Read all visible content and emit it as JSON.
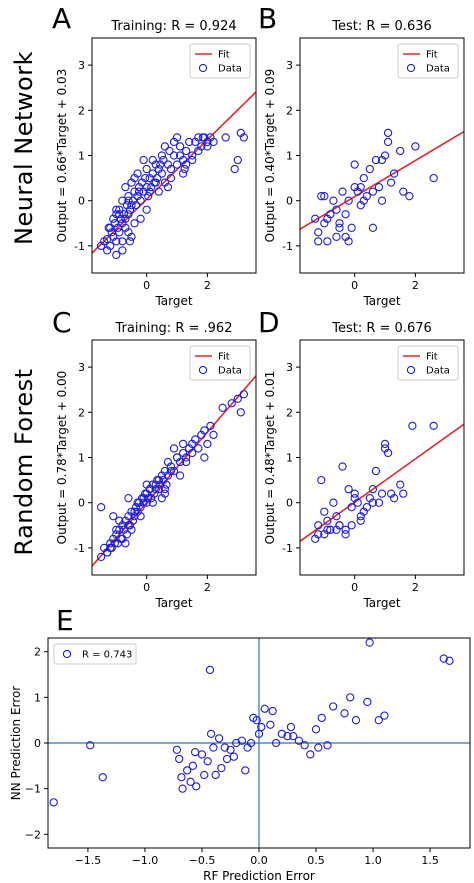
{
  "figure": {
    "row_labels": [
      "Neural Network",
      "Random Forest"
    ]
  },
  "chart_data": [
    {
      "id": "A",
      "type": "scatter",
      "panel_label": "A",
      "title": "Training:  R = 0.924",
      "xlabel": "Target",
      "ylabel": "Output = 0.66*Target + 0.03",
      "xlim": [
        -1.8,
        3.6
      ],
      "ylim": [
        -1.6,
        3.6
      ],
      "xticks": [
        0,
        2
      ],
      "yticks": [
        -1,
        0,
        1,
        2,
        3
      ],
      "legend": {
        "position": "top-right",
        "entries": [
          "Fit",
          "Data"
        ]
      },
      "fit": {
        "slope": 0.66,
        "intercept": 0.03,
        "name": "Fit"
      },
      "series": [
        {
          "name": "Data",
          "x": [
            -1.5,
            -1.4,
            -1.3,
            -1.25,
            -1.2,
            -1.15,
            -1.1,
            -1.05,
            -1.0,
            -1.0,
            -0.95,
            -0.9,
            -0.9,
            -0.85,
            -0.8,
            -0.8,
            -0.75,
            -0.7,
            -0.7,
            -0.65,
            -0.6,
            -0.6,
            -0.55,
            -0.5,
            -0.5,
            -0.45,
            -0.4,
            -0.35,
            -0.3,
            -0.25,
            -0.2,
            -0.15,
            -0.1,
            -0.05,
            0.0,
            0.05,
            0.1,
            0.15,
            0.2,
            0.25,
            0.3,
            0.35,
            0.4,
            0.5,
            0.55,
            0.6,
            0.7,
            0.75,
            0.8,
            0.9,
            1.0,
            1.1,
            1.2,
            1.3,
            1.4,
            1.5,
            1.6,
            1.7,
            1.8,
            1.9,
            2.0,
            2.1,
            -1.2,
            -1.0,
            -0.8,
            -0.6,
            -0.5,
            -0.3,
            -0.2,
            0.0,
            0.2,
            0.4,
            0.6,
            0.8,
            1.0,
            1.2,
            -0.9,
            -0.7,
            -0.4,
            -0.1,
            0.3,
            0.9,
            1.5,
            2.0,
            2.6,
            2.9,
            3.0,
            3.1,
            3.2,
            -1.3,
            -1.1,
            -0.6,
            0.1,
            0.5,
            1.3,
            1.7,
            -0.8,
            -0.4,
            0.0,
            0.7,
            1.1,
            2.2,
            -1.0,
            -0.55,
            -0.25,
            0.45,
            1.25,
            1.85
          ],
          "y": [
            -1.0,
            -0.9,
            -0.85,
            -0.6,
            -1.0,
            -0.7,
            -0.8,
            -0.5,
            -0.9,
            -0.3,
            -0.6,
            -0.7,
            -0.2,
            -0.4,
            -0.5,
            -0.9,
            -0.3,
            -0.4,
            -0.6,
            -0.1,
            -0.3,
            0.0,
            -0.2,
            -0.1,
            0.4,
            0.0,
            0.2,
            -0.1,
            0.1,
            0.3,
            0.0,
            0.4,
            0.2,
            0.5,
            0.3,
            0.1,
            0.5,
            0.3,
            0.6,
            0.4,
            0.8,
            0.5,
            0.7,
            0.6,
            0.9,
            0.4,
            0.8,
            1.1,
            0.7,
            1.0,
            0.8,
            1.2,
            0.9,
            1.1,
            1.3,
            0.9,
            1.3,
            1.1,
            1.2,
            1.4,
            1.3,
            1.4,
            -0.6,
            -0.2,
            -1.1,
            0.1,
            -0.8,
            0.6,
            -0.4,
            0.7,
            0.9,
            0.2,
            1.2,
            0.5,
            1.4,
            0.6,
            -0.3,
            0.3,
            -0.5,
            0.9,
            0.4,
            1.3,
            1.0,
            1.2,
            1.4,
            0.7,
            0.9,
            1.5,
            1.4,
            -1.1,
            -0.4,
            -0.7,
            0.2,
            1.0,
            0.8,
            1.4,
            0.0,
            0.5,
            -0.2,
            0.3,
            1.0,
            1.3,
            -1.2,
            -0.9,
            0.2,
            0.8,
            0.7,
            1.4
          ]
        }
      ]
    },
    {
      "id": "B",
      "type": "scatter",
      "panel_label": "B",
      "title": "Test:  R = 0.636",
      "xlabel": "Target",
      "ylabel": "Output = 0.40*Target + 0.09",
      "xlim": [
        -1.8,
        3.6
      ],
      "ylim": [
        -1.6,
        3.6
      ],
      "xticks": [
        0,
        2
      ],
      "yticks": [
        -1,
        0,
        1,
        2,
        3
      ],
      "legend": {
        "position": "top-right",
        "entries": [
          "Fit",
          "Data"
        ]
      },
      "fit": {
        "slope": 0.4,
        "intercept": 0.09,
        "name": "Fit"
      },
      "series": [
        {
          "name": "Data",
          "x": [
            -1.3,
            -1.2,
            -1.1,
            -1.0,
            -0.9,
            -0.8,
            -0.7,
            -0.6,
            -0.5,
            -0.4,
            -0.3,
            -0.2,
            -0.1,
            0.0,
            0.1,
            0.2,
            0.3,
            0.4,
            0.5,
            0.6,
            0.7,
            0.8,
            0.9,
            1.0,
            1.1,
            1.2,
            1.3,
            1.5,
            1.6,
            1.8,
            2.0,
            2.6,
            -1.2,
            -0.9,
            -0.5,
            -0.3,
            0.0,
            0.2,
            0.6,
            0.9,
            1.1,
            -1.0,
            -0.6,
            -0.2,
            0.3
          ],
          "y": [
            -0.4,
            -0.7,
            0.1,
            -0.5,
            -0.9,
            -0.3,
            0.0,
            -0.8,
            -0.5,
            0.2,
            -0.3,
            0.0,
            -0.6,
            0.3,
            0.2,
            -0.1,
            0.5,
            0.1,
            0.7,
            0.2,
            0.9,
            0.3,
            0.0,
            1.0,
            1.5,
            0.4,
            0.6,
            1.1,
            0.2,
            0.1,
            1.2,
            0.5,
            -0.9,
            -0.4,
            -0.6,
            -0.8,
            0.8,
            0.3,
            -0.6,
            0.9,
            1.3,
            0.1,
            -0.2,
            -0.9,
            0.0
          ]
        }
      ]
    },
    {
      "id": "C",
      "type": "scatter",
      "panel_label": "C",
      "title": "Training:  R = .962",
      "xlabel": "Target",
      "ylabel": "Output = 0.78*Target + 0.00",
      "xlim": [
        -1.8,
        3.6
      ],
      "ylim": [
        -1.6,
        3.6
      ],
      "xticks": [
        0,
        2
      ],
      "yticks": [
        -1,
        0,
        1,
        2,
        3
      ],
      "legend": {
        "position": "top-right",
        "entries": [
          "Fit",
          "Data"
        ]
      },
      "fit": {
        "slope": 0.78,
        "intercept": 0.0,
        "name": "Fit"
      },
      "series": [
        {
          "name": "Data",
          "x": [
            -1.5,
            -1.4,
            -1.3,
            -1.2,
            -1.15,
            -1.1,
            -1.05,
            -1.0,
            -0.95,
            -0.9,
            -0.85,
            -0.8,
            -0.75,
            -0.7,
            -0.65,
            -0.6,
            -0.55,
            -0.5,
            -0.45,
            -0.4,
            -0.35,
            -0.3,
            -0.25,
            -0.2,
            -0.15,
            -0.1,
            -0.05,
            0.0,
            0.05,
            0.1,
            0.15,
            0.2,
            0.25,
            0.3,
            0.35,
            0.4,
            0.45,
            0.5,
            0.55,
            0.6,
            0.65,
            0.7,
            0.8,
            0.9,
            1.0,
            1.1,
            1.2,
            1.3,
            1.4,
            1.5,
            1.6,
            1.7,
            1.8,
            1.9,
            2.0,
            2.1,
            2.2,
            2.5,
            2.8,
            3.0,
            3.1,
            3.2,
            -1.2,
            -1.0,
            -0.8,
            -0.6,
            -0.4,
            -0.2,
            0.0,
            0.2,
            0.4,
            0.6,
            0.8,
            1.0,
            1.2,
            -1.3,
            -0.9,
            -0.5,
            -0.1,
            0.3,
            0.7,
            1.1,
            1.5,
            1.9,
            -0.7,
            -0.3,
            0.1,
            0.5,
            0.9,
            1.3,
            -1.1,
            -0.6,
            0.0,
            0.6,
            -1.5
          ],
          "y": [
            -1.2,
            -1.0,
            -1.1,
            -0.9,
            -1.0,
            -0.8,
            -0.9,
            -0.7,
            -0.9,
            -0.6,
            -0.8,
            -0.5,
            -0.6,
            -0.4,
            -0.7,
            -0.3,
            -0.5,
            -0.2,
            -0.4,
            -0.3,
            -0.1,
            -0.2,
            0.0,
            -0.1,
            0.1,
            0.0,
            0.2,
            0.0,
            0.1,
            0.3,
            0.1,
            0.4,
            0.2,
            0.3,
            0.5,
            0.3,
            0.4,
            0.6,
            0.5,
            0.7,
            0.4,
            0.6,
            0.8,
            0.7,
            1.0,
            0.9,
            1.1,
            1.0,
            1.2,
            1.3,
            1.4,
            1.2,
            1.5,
            1.6,
            1.3,
            1.7,
            1.5,
            2.1,
            2.2,
            2.3,
            2.0,
            2.4,
            -1.0,
            -0.6,
            -0.8,
            -0.5,
            -0.2,
            -0.3,
            0.2,
            0.0,
            0.5,
            0.2,
            0.7,
            1.0,
            1.3,
            -1.1,
            -0.4,
            -0.6,
            0.1,
            0.4,
            0.9,
            0.6,
            1.1,
            1.0,
            -0.9,
            0.0,
            0.3,
            0.1,
            1.2,
            0.9,
            -0.3,
            0.1,
            0.4,
            0.3,
            -0.1
          ]
        }
      ]
    },
    {
      "id": "D",
      "type": "scatter",
      "panel_label": "D",
      "title": "Test:  R = 0.676",
      "xlabel": "Target",
      "ylabel": "Output = 0.48*Target + 0.01",
      "xlim": [
        -1.8,
        3.6
      ],
      "ylim": [
        -1.6,
        3.6
      ],
      "xticks": [
        0,
        2
      ],
      "yticks": [
        -1,
        0,
        1,
        2,
        3
      ],
      "legend": {
        "position": "top-right",
        "entries": [
          "Fit",
          "Data"
        ]
      },
      "fit": {
        "slope": 0.48,
        "intercept": 0.01,
        "name": "Fit"
      },
      "series": [
        {
          "name": "Data",
          "x": [
            -1.3,
            -1.2,
            -1.1,
            -1.0,
            -0.9,
            -0.8,
            -0.7,
            -0.6,
            -0.5,
            -0.4,
            -0.3,
            -0.2,
            -0.1,
            0.0,
            0.1,
            0.2,
            0.3,
            0.5,
            0.6,
            0.7,
            0.8,
            0.9,
            1.0,
            1.1,
            1.2,
            1.3,
            1.5,
            1.6,
            1.9,
            2.6,
            -1.2,
            -0.9,
            -0.6,
            -0.3,
            -0.1,
            0.2,
            0.6,
            1.0,
            -1.0,
            -0.5,
            0.0,
            0.4,
            -0.8
          ],
          "y": [
            -0.8,
            -0.5,
            0.5,
            -0.7,
            -0.4,
            -0.6,
            0.0,
            -0.6,
            -0.5,
            0.8,
            -0.6,
            0.3,
            -0.5,
            0.2,
            0.0,
            -0.3,
            -0.2,
            0.1,
            0.3,
            0.7,
            0.0,
            0.2,
            1.3,
            1.1,
            0.2,
            0.1,
            0.4,
            0.2,
            1.7,
            1.7,
            -0.7,
            -0.6,
            -0.3,
            -0.7,
            -0.1,
            -0.4,
            0.0,
            1.2,
            -0.2,
            -0.5,
            0.1,
            -0.1,
            -0.6
          ]
        }
      ]
    },
    {
      "id": "E",
      "type": "scatter",
      "panel_label": "E",
      "title": "",
      "xlabel": "RF Prediction Error",
      "ylabel": "NN Prediction Error",
      "xlim": [
        -1.85,
        1.85
      ],
      "ylim": [
        -2.3,
        2.3
      ],
      "xticks": [
        -1.5,
        -1.0,
        -0.5,
        0.0,
        0.5,
        1.0,
        1.5
      ],
      "xtick_labels": [
        "−1.5",
        "−1.0",
        "−0.5",
        "0.0",
        "0.5",
        "1.0",
        "1.5"
      ],
      "yticks": [
        -2,
        -1,
        0,
        1,
        2
      ],
      "yticks_labels": [
        "−2",
        "−1",
        "0",
        "1",
        "2"
      ],
      "legend": {
        "position": "top-left",
        "entries": [
          "R = 0.743"
        ]
      },
      "reference_lines": {
        "x": 0,
        "y": 0
      },
      "series": [
        {
          "name": "R = 0.743",
          "x": [
            -1.8,
            -1.48,
            -1.37,
            -0.72,
            -0.7,
            -0.68,
            -0.67,
            -0.63,
            -0.6,
            -0.58,
            -0.56,
            -0.55,
            -0.5,
            -0.48,
            -0.45,
            -0.43,
            -0.42,
            -0.4,
            -0.38,
            -0.35,
            -0.33,
            -0.3,
            -0.28,
            -0.25,
            -0.22,
            -0.2,
            -0.15,
            -0.12,
            -0.1,
            -0.07,
            -0.05,
            -0.02,
            0.0,
            0.02,
            0.05,
            0.1,
            0.12,
            0.15,
            0.2,
            0.25,
            0.28,
            0.3,
            0.35,
            0.4,
            0.45,
            0.5,
            0.52,
            0.55,
            0.6,
            0.65,
            0.75,
            0.8,
            0.85,
            0.95,
            1.05,
            1.1,
            1.62,
            1.67,
            0.97
          ],
          "y": [
            -1.3,
            -0.05,
            -0.75,
            -0.15,
            -0.35,
            -0.75,
            -1.0,
            -0.6,
            -0.85,
            -0.5,
            -0.2,
            -0.95,
            -0.25,
            -0.7,
            -0.4,
            1.6,
            0.2,
            -0.1,
            -0.7,
            0.1,
            -0.55,
            -0.1,
            -0.35,
            -0.15,
            -0.3,
            0.0,
            0.05,
            -0.6,
            -0.1,
            0.0,
            0.55,
            0.5,
            0.2,
            0.35,
            0.75,
            0.4,
            0.7,
            0.0,
            0.2,
            0.15,
            0.35,
            0.15,
            0.05,
            -0.05,
            -0.25,
            0.3,
            -0.1,
            0.55,
            -0.05,
            0.8,
            0.65,
            1.0,
            0.5,
            0.9,
            0.5,
            0.6,
            1.85,
            1.8,
            2.2
          ]
        }
      ]
    }
  ]
}
